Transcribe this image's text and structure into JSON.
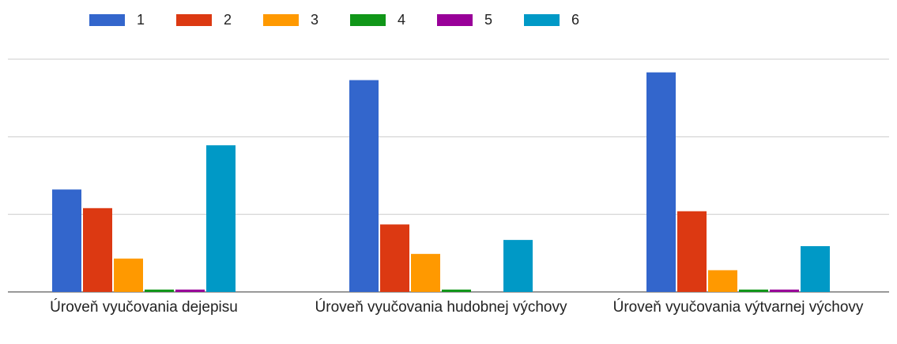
{
  "chart_data": {
    "type": "bar",
    "categories": [
      "Úroveň vyučovania dejepisu",
      "Úroveň vyučovania hudobnej výchovy",
      "Úroveň vyučovania výtvarnej výchovy"
    ],
    "series": [
      {
        "name": "1",
        "color": "#3366cc",
        "values": [
          13.2,
          27.3,
          28.3
        ]
      },
      {
        "name": "2",
        "color": "#dc3912",
        "values": [
          10.8,
          8.7,
          10.4
        ]
      },
      {
        "name": "3",
        "color": "#ff9900",
        "values": [
          4.3,
          4.9,
          2.8
        ]
      },
      {
        "name": "4",
        "color": "#109618",
        "values": [
          0.3,
          0.3,
          0.3
        ]
      },
      {
        "name": "5",
        "color": "#990099",
        "values": [
          0.3,
          0,
          0.3
        ]
      },
      {
        "name": "6",
        "color": "#0099c6",
        "values": [
          18.9,
          6.7,
          5.9
        ]
      }
    ],
    "ylim": [
      0,
      30
    ],
    "yticks": [
      0,
      10,
      20,
      30
    ],
    "grid": true,
    "legend": "top"
  }
}
